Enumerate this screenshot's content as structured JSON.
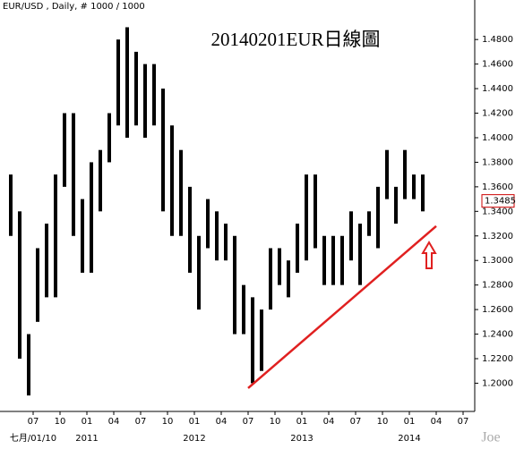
{
  "chart_data": {
    "type": "range-bar",
    "title": "20140201EUR日線圖",
    "header": "EUR/USD , Daily, # 1000 / 1000",
    "watermark": "Joe",
    "color": "#000000",
    "x": [
      "2010-04",
      "2010-05",
      "2010-06",
      "2010-07",
      "2010-08",
      "2010-09",
      "2010-10",
      "2010-11",
      "2010-12",
      "2011-01",
      "2011-02",
      "2011-03",
      "2011-04",
      "2011-05",
      "2011-06",
      "2011-07",
      "2011-08",
      "2011-09",
      "2011-10",
      "2011-11",
      "2011-12",
      "2012-01",
      "2012-02",
      "2012-03",
      "2012-04",
      "2012-05",
      "2012-06",
      "2012-07",
      "2012-08",
      "2012-09",
      "2012-10",
      "2012-11",
      "2012-12",
      "2013-01",
      "2013-02",
      "2013-03",
      "2013-04",
      "2013-05",
      "2013-06",
      "2013-07",
      "2013-08",
      "2013-09",
      "2013-10",
      "2013-11",
      "2013-12",
      "2014-01",
      "2014-02"
    ],
    "high": [
      1.37,
      1.34,
      1.24,
      1.31,
      1.33,
      1.37,
      1.42,
      1.42,
      1.35,
      1.38,
      1.39,
      1.42,
      1.48,
      1.49,
      1.47,
      1.46,
      1.46,
      1.44,
      1.41,
      1.39,
      1.36,
      1.32,
      1.35,
      1.34,
      1.33,
      1.32,
      1.28,
      1.27,
      1.26,
      1.31,
      1.31,
      1.3,
      1.33,
      1.37,
      1.37,
      1.32,
      1.32,
      1.32,
      1.34,
      1.33,
      1.34,
      1.36,
      1.39,
      1.36,
      1.39,
      1.37,
      1.37
    ],
    "low": [
      1.32,
      1.22,
      1.19,
      1.25,
      1.27,
      1.27,
      1.36,
      1.32,
      1.29,
      1.29,
      1.34,
      1.38,
      1.41,
      1.4,
      1.41,
      1.4,
      1.41,
      1.34,
      1.32,
      1.32,
      1.29,
      1.26,
      1.31,
      1.3,
      1.3,
      1.24,
      1.24,
      1.2,
      1.21,
      1.26,
      1.28,
      1.27,
      1.29,
      1.3,
      1.31,
      1.28,
      1.28,
      1.28,
      1.3,
      1.28,
      1.32,
      1.31,
      1.35,
      1.33,
      1.35,
      1.35,
      1.34
    ],
    "last_price": 1.3485,
    "last_price_color": "#cc0000",
    "trendline": {
      "x": [
        "2012-07",
        "2014-04"
      ],
      "values": [
        1.196,
        1.328
      ],
      "color": "#e02020"
    },
    "xlim": [
      "2010-04",
      "2014-08"
    ],
    "ylim": [
      1.177,
      1.502
    ],
    "yticks": [
      {
        "value": 1.2,
        "label": "1.2000"
      },
      {
        "value": 1.22,
        "label": "1.2200"
      },
      {
        "value": 1.24,
        "label": "1.2400"
      },
      {
        "value": 1.26,
        "label": "1.2600"
      },
      {
        "value": 1.28,
        "label": "1.2800"
      },
      {
        "value": 1.3,
        "label": "1.3000"
      },
      {
        "value": 1.32,
        "label": "1.3200"
      },
      {
        "value": 1.34,
        "label": "1.3400"
      },
      {
        "value": 1.36,
        "label": "1.3600"
      },
      {
        "value": 1.38,
        "label": "1.3800"
      },
      {
        "value": 1.4,
        "label": "1.4000"
      },
      {
        "value": 1.42,
        "label": "1.4200"
      },
      {
        "value": 1.44,
        "label": "1.4400"
      },
      {
        "value": 1.46,
        "label": "1.4600"
      },
      {
        "value": 1.48,
        "label": "1.4800"
      }
    ],
    "xticks": [
      {
        "value": "2010-07",
        "label": "07"
      },
      {
        "value": "2010-10",
        "label": "10"
      },
      {
        "value": "2011-01",
        "label": "01"
      },
      {
        "value": "2011-04",
        "label": "04"
      },
      {
        "value": "2011-07",
        "label": "07"
      },
      {
        "value": "2011-10",
        "label": "10"
      },
      {
        "value": "2012-01",
        "label": "01"
      },
      {
        "value": "2012-04",
        "label": "04"
      },
      {
        "value": "2012-07",
        "label": "07"
      },
      {
        "value": "2012-10",
        "label": "10"
      },
      {
        "value": "2013-01",
        "label": "01"
      },
      {
        "value": "2013-04",
        "label": "04"
      },
      {
        "value": "2013-07",
        "label": "07"
      },
      {
        "value": "2013-10",
        "label": "10"
      },
      {
        "value": "2014-01",
        "label": "01"
      },
      {
        "value": "2014-04",
        "label": "04"
      },
      {
        "value": "2014-07",
        "label": "07"
      }
    ],
    "xticks_major": [
      {
        "value": "2010-07",
        "label": "七月/01/10"
      },
      {
        "value": "2011-01",
        "label": "2011"
      },
      {
        "value": "2012-01",
        "label": "2012"
      },
      {
        "value": "2013-01",
        "label": "2013"
      },
      {
        "value": "2014-01",
        "label": "2014"
      }
    ]
  }
}
